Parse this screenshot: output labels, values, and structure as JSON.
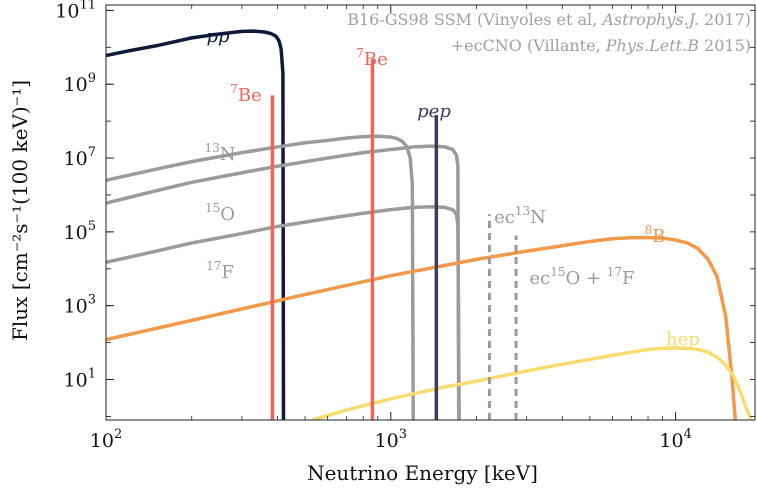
{
  "chart_data": {
    "type": "line",
    "title": "",
    "xlabel": "Neutrino Energy [keV]",
    "ylabel": "Flux [cm⁻²s⁻¹(100 keV)⁻¹]",
    "x_scale": "log",
    "y_scale": "log",
    "xlim": [
      100,
      19000
    ],
    "ylim": [
      0.8,
      140000000000
    ],
    "x_ticks": [
      {
        "value": 100,
        "base": "10",
        "exp": "2"
      },
      {
        "value": 1000,
        "base": "10",
        "exp": "3"
      },
      {
        "value": 10000,
        "base": "10",
        "exp": "4"
      }
    ],
    "y_ticks": [
      {
        "value": 10,
        "base": "10",
        "exp": "1"
      },
      {
        "value": 1000,
        "base": "10",
        "exp": "3"
      },
      {
        "value": 100000,
        "base": "10",
        "exp": "5"
      },
      {
        "value": 10000000,
        "base": "10",
        "exp": "7"
      },
      {
        "value": 1000000000,
        "base": "10",
        "exp": "9"
      },
      {
        "value": 100000000000,
        "base": "10",
        "exp": "11"
      }
    ],
    "grid": false,
    "legend": "none",
    "credits": [
      {
        "pre": "B16-GS98 SSM (Vinyoles et al, ",
        "ital": "Astrophys.J.",
        "post": " 2017)"
      },
      {
        "pre": "+ecCNO (Villante, ",
        "ital": "Phys.Lett.B",
        "post": " 2015)"
      }
    ],
    "series": [
      {
        "label": {
          "base": "",
          "sup": "",
          "ital": "pp"
        },
        "color": "#0e1a3a",
        "style": "solid",
        "kind": "curve",
        "x": [
          100,
          120,
          150,
          180,
          200,
          250,
          300,
          330,
          360,
          380,
          395,
          405,
          412,
          418,
          420
        ],
        "y": [
          6000000000.0,
          8000000000.0,
          11000000000.0,
          15000000000.0,
          18000000000.0,
          23000000000.0,
          27000000000.0,
          27500000000.0,
          26000000000.0,
          23500000000.0,
          20000000000.0,
          15000000000.0,
          9000000000.0,
          2000000000.0,
          0.8
        ]
      },
      {
        "label": {
          "base": "N",
          "sup": "13",
          "ital": ""
        },
        "color": "#9b9b9b",
        "style": "solid",
        "kind": "curve",
        "x": [
          100,
          150,
          200,
          300,
          400,
          500,
          600,
          700,
          800,
          900,
          1000,
          1050,
          1100,
          1140,
          1170,
          1190,
          1199
        ],
        "y": [
          2500000.0,
          5000000.0,
          8000000.0,
          14000000.0,
          20000000.0,
          26000000.0,
          30000000.0,
          35000000.0,
          38000000.0,
          39000000.0,
          37000000.0,
          34000000.0,
          28000000.0,
          20000000.0,
          10000000.0,
          2000000.0,
          0.8
        ]
      },
      {
        "label": {
          "base": "O",
          "sup": "15",
          "ital": ""
        },
        "color": "#9b9b9b",
        "style": "solid",
        "kind": "curve",
        "x": [
          100,
          150,
          200,
          300,
          400,
          600,
          800,
          1000,
          1200,
          1400,
          1550,
          1650,
          1700,
          1720,
          1732
        ],
        "y": [
          600000.0,
          1300000.0,
          2200000.0,
          4000000.0,
          6000000.0,
          10000000.0,
          14000000.0,
          17000000.0,
          20000000.0,
          21000000.0,
          20000000.0,
          17000000.0,
          12000000.0,
          6000000.0,
          0.8
        ]
      },
      {
        "label": {
          "base": "F",
          "sup": "17",
          "ital": ""
        },
        "color": "#9b9b9b",
        "style": "solid",
        "kind": "curve",
        "x": [
          100,
          150,
          200,
          300,
          400,
          600,
          800,
          1000,
          1200,
          1400,
          1550,
          1650,
          1700,
          1720,
          1738
        ],
        "y": [
          15000.0,
          30000.0,
          50000.0,
          90000.0,
          140000.0,
          230000.0,
          320000.0,
          400000.0,
          460000.0,
          480000.0,
          460000.0,
          400000.0,
          300000.0,
          150000.0,
          0.8
        ]
      },
      {
        "label": {
          "base": "B",
          "sup": "8",
          "ital": ""
        },
        "color": "#f2994a",
        "style": "solid",
        "kind": "curve",
        "x": [
          100,
          200,
          500,
          1000,
          2000,
          3000,
          4000,
          5000,
          6000,
          7000,
          8000,
          9000,
          10000,
          11000,
          12000,
          13000,
          14000,
          15000,
          15800,
          16200
        ],
        "y": [
          120,
          400,
          2000,
          6500,
          18000.0,
          30000.0,
          42000.0,
          55000.0,
          65000.0,
          70000.0,
          70000.0,
          68000.0,
          60000.0,
          50000.0,
          35000.0,
          18000.0,
          6000,
          500,
          10,
          0.8
        ]
      },
      {
        "label": {
          "base": "hep",
          "sup": "",
          "ital": ""
        },
        "color": "#f9dc6e",
        "style": "solid",
        "kind": "curve",
        "x": [
          530,
          700,
          1000,
          1500,
          2000,
          3000,
          4000,
          5000,
          6000,
          7000,
          8000,
          9000,
          10000,
          11000,
          12000,
          13000,
          14000,
          15000,
          16000,
          17000,
          18000,
          18500
        ],
        "y": [
          0.8,
          1.5,
          3,
          6,
          9,
          17,
          26,
          35,
          45,
          55,
          65,
          70,
          72,
          70,
          65,
          55,
          40,
          25,
          12,
          4,
          1.2,
          0.8
        ]
      },
      {
        "label": {
          "base": "Be",
          "sup": "7",
          "ital": ""
        },
        "color": "#f0645a",
        "style": "solid",
        "kind": "line",
        "x": [
          384,
          384
        ],
        "y": [
          0.8,
          500000000.0
        ]
      },
      {
        "label": {
          "base": "Be",
          "sup": "7",
          "ital": ""
        },
        "color": "#f0645a",
        "style": "solid",
        "kind": "line",
        "x": [
          862,
          862
        ],
        "y": [
          0.8,
          4800000000.0
        ]
      },
      {
        "label": {
          "base": "",
          "sup": "",
          "ital": "pep"
        },
        "color": "#3f3a5e",
        "style": "solid",
        "kind": "line",
        "x": [
          1445,
          1445
        ],
        "y": [
          0.8,
          145000000.0
        ]
      },
      {
        "label": {
          "base": "N",
          "sup": "13",
          "ital": "",
          "prefix": "ec"
        },
        "color": "#9b9b9b",
        "style": "dashed",
        "kind": "line",
        "x": [
          2220,
          2220
        ],
        "y": [
          0.8,
          300000.0
        ]
      },
      {
        "label": {
          "base": "O",
          "sup": "15",
          "ital": "",
          "prefix": "ec",
          "extra_sup": "17",
          "extra_base": "F"
        },
        "color": "#9b9b9b",
        "style": "dashed",
        "kind": "line",
        "x": [
          2754,
          2754
        ],
        "y": [
          0.8,
          80000.0
        ]
      }
    ]
  }
}
